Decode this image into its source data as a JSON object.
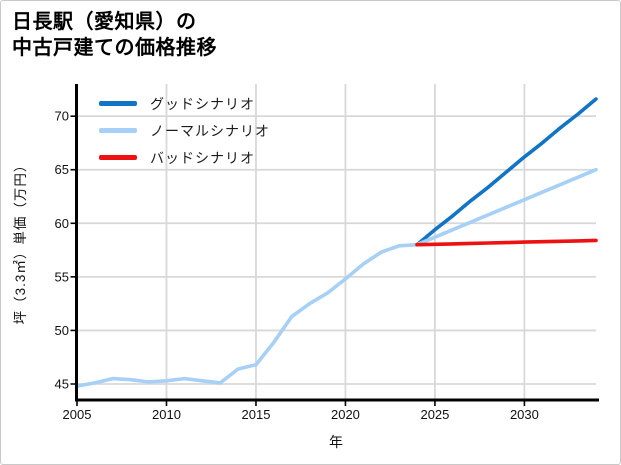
{
  "card": {
    "title_line1": "日長駅（愛知県）の",
    "title_line2": "中古戸建ての価格推移"
  },
  "chart_data": {
    "type": "line",
    "title": "日長駅（愛知県）の中古戸建ての価格推移",
    "xlabel": "年",
    "ylabel": "坪（3.3㎡）単価（万円）",
    "xlim": [
      2005,
      2034
    ],
    "ylim": [
      43.6,
      73.0
    ],
    "x_ticks": [
      2005,
      2010,
      2015,
      2020,
      2025,
      2030
    ],
    "y_ticks": [
      45,
      50,
      55,
      60,
      65,
      70
    ],
    "grid": true,
    "legend_position": "top-left",
    "colors": {
      "grid": "#d8d8d8",
      "spine": "#000000",
      "tick_text": "#111111"
    },
    "series": [
      {
        "name": "グッドシナリオ",
        "color": "#1274c5",
        "start_year": 2024,
        "values": [
          58.0,
          59.4,
          60.7,
          62.1,
          63.4,
          64.8,
          66.2,
          67.5,
          68.9,
          70.2,
          71.6
        ]
      },
      {
        "name": "ノーマルシナリオ",
        "color": "#a6d0f5",
        "start_year": 2005,
        "values": [
          44.8,
          45.1,
          45.5,
          45.4,
          45.2,
          45.3,
          45.5,
          45.3,
          45.1,
          46.4,
          46.8,
          48.9,
          51.3,
          52.5,
          53.5,
          54.8,
          56.2,
          57.3,
          57.9,
          58.0,
          58.7,
          59.4,
          60.1,
          60.8,
          61.5,
          62.2,
          62.9,
          63.6,
          64.3,
          65.0
        ]
      },
      {
        "name": "バッドシナリオ",
        "color": "#ee1111",
        "start_year": 2024,
        "values": [
          58.0,
          58.04,
          58.08,
          58.12,
          58.16,
          58.2,
          58.24,
          58.28,
          58.32,
          58.36,
          58.4
        ]
      }
    ]
  }
}
